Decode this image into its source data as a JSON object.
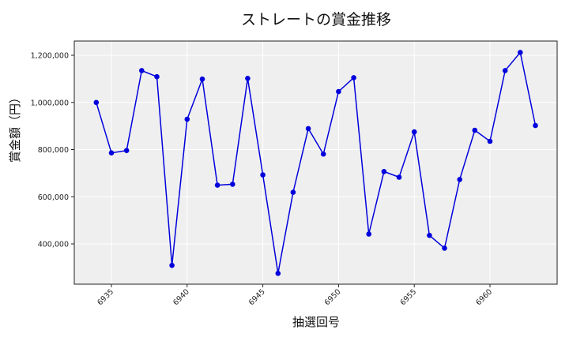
{
  "chart_data": {
    "type": "line",
    "title": "ストレートの賞金推移",
    "xlabel": "抽選回号",
    "ylabel": "賞金額（円）",
    "x": [
      6934,
      6935,
      6936,
      6937,
      6938,
      6939,
      6940,
      6941,
      6942,
      6943,
      6944,
      6945,
      6946,
      6947,
      6948,
      6949,
      6950,
      6951,
      6952,
      6953,
      6954,
      6955,
      6956,
      6957,
      6958,
      6959,
      6960,
      6961,
      6962,
      6963
    ],
    "series": [
      {
        "name": "ストレート",
        "color": "#0000dd",
        "values": [
          1000000,
          786000,
          796000,
          1135000,
          1109000,
          309000,
          929000,
          1099000,
          649000,
          653000,
          1102000,
          693000,
          275000,
          619000,
          889000,
          781000,
          1046000,
          1105000,
          442000,
          707000,
          683000,
          875000,
          436000,
          382000,
          673000,
          882000,
          835000,
          1135000,
          1212000,
          902000
        ]
      }
    ],
    "x_ticks": [
      6935,
      6940,
      6945,
      6950,
      6955,
      6960
    ],
    "x_tick_labels": [
      "6935",
      "6940",
      "6945",
      "6950",
      "6955",
      "6960"
    ],
    "y_ticks": [
      400000,
      600000,
      800000,
      1000000,
      1200000
    ],
    "y_tick_labels": [
      "400,000",
      "600,000",
      "800,000",
      "1,000,000",
      "1,200,000"
    ],
    "xlim": [
      6932.6,
      6964.5
    ],
    "ylim": [
      235000,
      1264000
    ],
    "grid": true,
    "legend": null,
    "plot_background": "#efefef",
    "gridline_color": "#ffffff",
    "marker_color": "#0000dd"
  }
}
